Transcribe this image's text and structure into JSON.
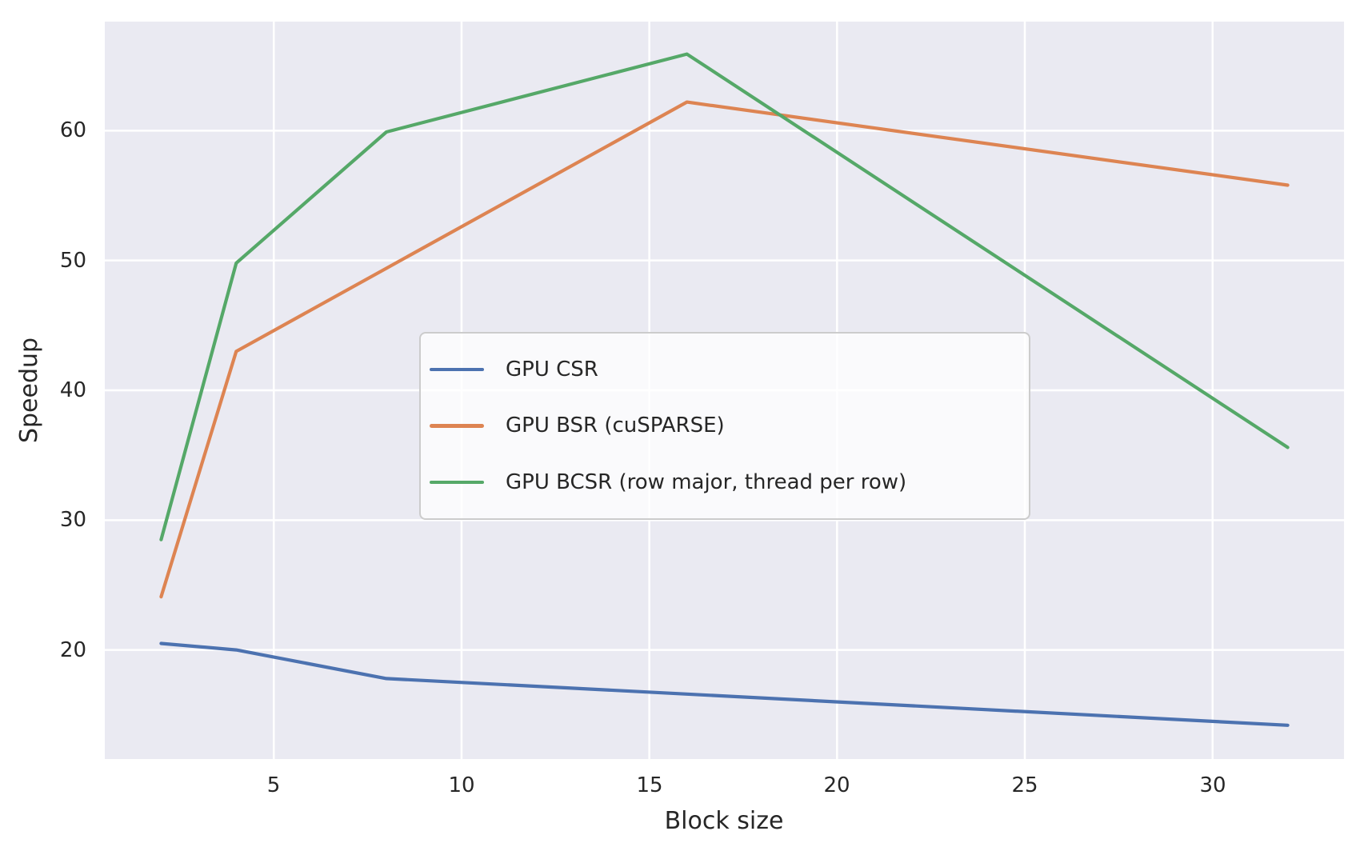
{
  "figure": {
    "background": "#ffffff",
    "plot_background": "#eaeaf2",
    "grid_color": "#ffffff",
    "text_color": "#262626"
  },
  "chart_data": {
    "type": "line",
    "title": "",
    "xlabel": "Block size",
    "ylabel": "Speedup",
    "x": [
      2,
      4,
      8,
      16,
      32
    ],
    "series": [
      {
        "name": "GPU CSR",
        "color": "#4c72b0",
        "values": [
          20.5,
          20.0,
          17.8,
          16.6,
          14.2
        ]
      },
      {
        "name": "GPU BSR (cuSPARSE)",
        "color": "#dd8452",
        "values": [
          24.1,
          43.0,
          49.4,
          62.2,
          55.8
        ]
      },
      {
        "name": "GPU BCSR (row major, thread per row)",
        "color": "#55a868",
        "values": [
          28.5,
          49.8,
          59.9,
          65.9,
          35.6
        ]
      }
    ],
    "xticks": [
      5,
      10,
      15,
      20,
      25,
      30
    ],
    "yticks": [
      20,
      30,
      40,
      50,
      60
    ],
    "xlim": [
      0.5,
      33.5
    ],
    "ylim": [
      11.6,
      68.4
    ],
    "grid": true,
    "legend_position": "center-left-inside"
  }
}
